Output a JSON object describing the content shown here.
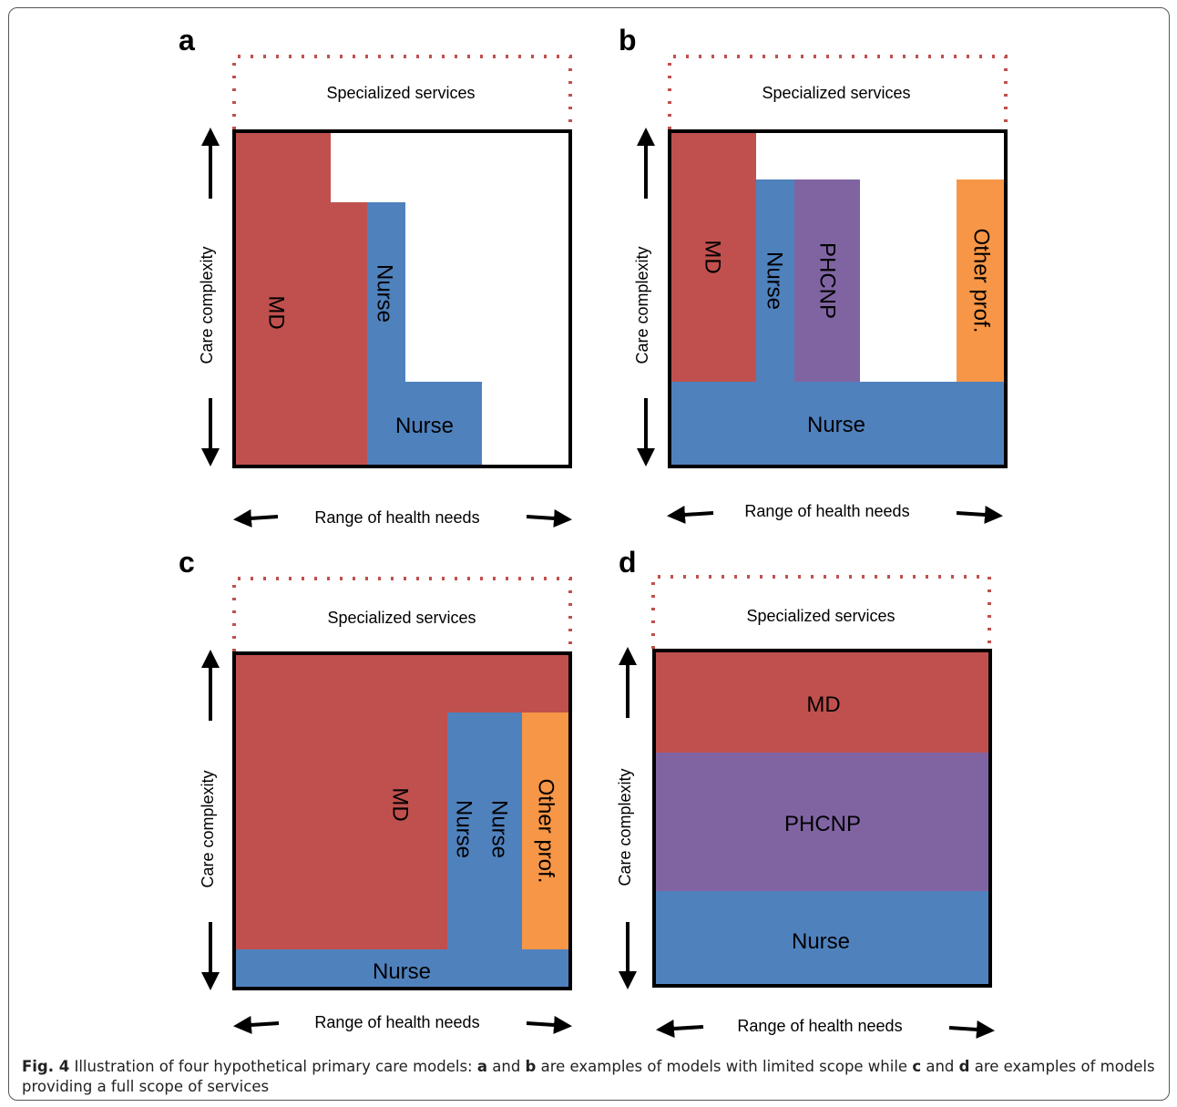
{
  "figure": {
    "colors": {
      "md": "#c0504d",
      "nurse": "#4f81bd",
      "phcnp": "#8064a2",
      "other": "#f79646",
      "dotted_border": "#c0504d"
    },
    "panels": [
      {
        "letter": "a",
        "specialized_label": "Specialized services",
        "y_axis_label": "Care complexity",
        "x_axis_label": "Range of health needs",
        "blocks": [
          {
            "role": "md",
            "label": "MD",
            "orientation": "vertical"
          },
          {
            "role": "nurse",
            "label": "Nurse",
            "orientation": "vertical"
          },
          {
            "role": "nurse",
            "label": "Nurse",
            "orientation": "horizontal"
          }
        ]
      },
      {
        "letter": "b",
        "specialized_label": "Specialized services",
        "y_axis_label": "Care complexity",
        "x_axis_label": "Range of health needs",
        "blocks": [
          {
            "role": "md",
            "label": "MD",
            "orientation": "vertical"
          },
          {
            "role": "nurse",
            "label": "Nurse",
            "orientation": "vertical"
          },
          {
            "role": "phcnp",
            "label": "PHCNP",
            "orientation": "vertical"
          },
          {
            "role": "other",
            "label": "Other prof.",
            "orientation": "vertical"
          },
          {
            "role": "nurse",
            "label": "Nurse",
            "orientation": "horizontal"
          }
        ]
      },
      {
        "letter": "c",
        "specialized_label": "Specialized services",
        "y_axis_label": "Care complexity",
        "x_axis_label": "Range of health needs",
        "blocks": [
          {
            "role": "md",
            "label": "MD",
            "orientation": "vertical"
          },
          {
            "role": "nurse",
            "label": "Nurse",
            "orientation": "vertical"
          },
          {
            "role": "nurse",
            "label": "Nurse",
            "orientation": "vertical"
          },
          {
            "role": "other",
            "label": "Other prof.",
            "orientation": "vertical"
          },
          {
            "role": "nurse",
            "label": "Nurse",
            "orientation": "horizontal"
          }
        ]
      },
      {
        "letter": "d",
        "specialized_label": "Specialized services",
        "y_axis_label": "Care complexity",
        "x_axis_label": "Range of health needs",
        "blocks": [
          {
            "role": "md",
            "label": "MD",
            "orientation": "horizontal"
          },
          {
            "role": "phcnp",
            "label": "PHCNP",
            "orientation": "horizontal"
          },
          {
            "role": "nurse",
            "label": "Nurse",
            "orientation": "horizontal"
          }
        ]
      }
    ]
  },
  "caption": {
    "fig_label": "Fig. 4",
    "text_1": " Illustration of four hypothetical primary care models: ",
    "a": "a",
    "text_2": " and ",
    "b": "b",
    "text_3": " are examples of models with limited scope while ",
    "c": "c",
    "text_4": " and ",
    "d": "d",
    "text_5": " are examples of models providing a full scope of services"
  }
}
